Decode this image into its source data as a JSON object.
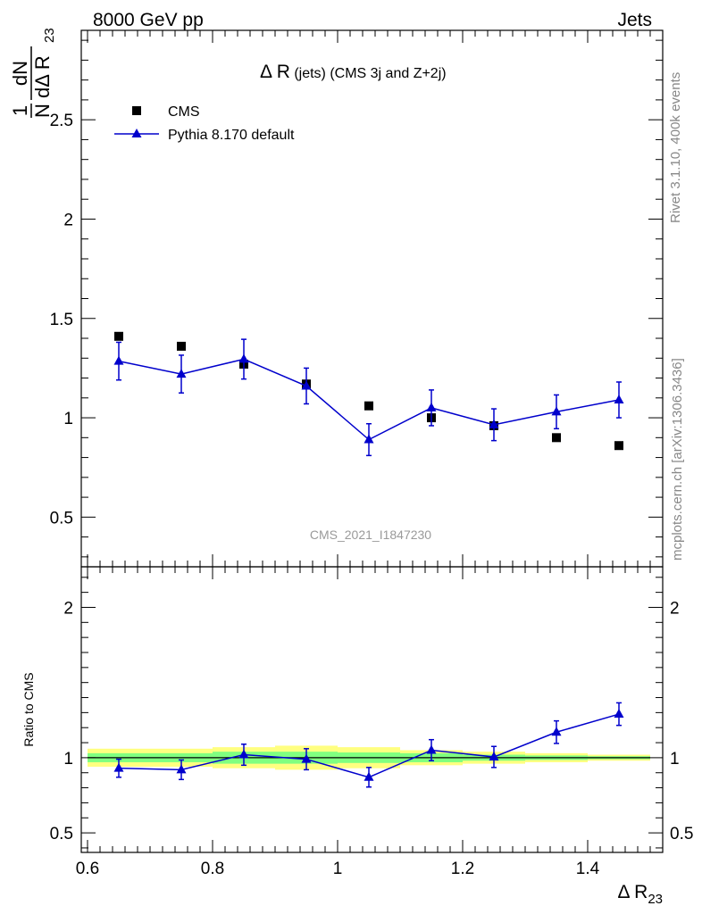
{
  "header": {
    "left": "8000 GeV pp",
    "right": "Jets"
  },
  "plot_title": {
    "symbol": "Δ R",
    "main": " (jets) (CMS 3j and Z+2j)"
  },
  "ylabel_main": {
    "frac_top": "1",
    "frac_bottom": "N",
    "d_top": "dN",
    "d_bottom": "dΔ R",
    "sub": "23"
  },
  "xlabel": {
    "main": "Δ R",
    "sub": "23"
  },
  "ylabel_ratio": "Ratio to CMS",
  "side_labels": {
    "rivet": "Rivet 3.1.10,  400k events",
    "mcplots": "mcplots.cern.ch [arXiv:1306.3436]"
  },
  "watermark": "CMS_2021_I1847230",
  "legend": {
    "data_label": "CMS",
    "mc_label": "Pythia 8.170 default"
  },
  "colors": {
    "data": "#000000",
    "mc": "#0000cc",
    "band_outer": "#ffff80",
    "band_inner": "#80ff80"
  },
  "chart_data": {
    "type": "scatter",
    "x_range": [
      0.59,
      1.52
    ],
    "main_panel": {
      "ylim": [
        0.25,
        2.95
      ],
      "yticks": [
        0.5,
        1,
        1.5,
        2,
        2.5
      ],
      "ytick_labels": [
        "0.5",
        "1",
        "1.5",
        "2",
        "2.5"
      ]
    },
    "ratio_panel": {
      "ylim": [
        0.37,
        2.27
      ],
      "yticks": [
        0.5,
        1,
        2
      ],
      "ytick_labels": [
        "0.5",
        "1",
        "2"
      ]
    },
    "xticks": [
      0.6,
      0.8,
      1,
      1.2,
      1.4
    ],
    "xtick_labels": [
      "0.6",
      "0.8",
      "1",
      "1.2",
      "1.4"
    ],
    "bins": [
      {
        "lo": 0.6,
        "hi": 0.7
      },
      {
        "lo": 0.7,
        "hi": 0.8
      },
      {
        "lo": 0.8,
        "hi": 0.9
      },
      {
        "lo": 0.9,
        "hi": 1.0
      },
      {
        "lo": 1.0,
        "hi": 1.1
      },
      {
        "lo": 1.1,
        "hi": 1.2
      },
      {
        "lo": 1.2,
        "hi": 1.3
      },
      {
        "lo": 1.3,
        "hi": 1.4
      },
      {
        "lo": 1.4,
        "hi": 1.5
      }
    ],
    "series": [
      {
        "name": "CMS",
        "x": [
          0.65,
          0.75,
          0.85,
          0.95,
          1.05,
          1.15,
          1.25,
          1.35,
          1.45
        ],
        "y": [
          1.41,
          1.36,
          1.27,
          1.17,
          1.06,
          1.0,
          0.96,
          0.9,
          0.86
        ]
      },
      {
        "name": "Pythia 8.170 default",
        "x": [
          0.65,
          0.75,
          0.85,
          0.95,
          1.05,
          1.15,
          1.25,
          1.35,
          1.45
        ],
        "y": [
          1.285,
          1.22,
          1.295,
          1.16,
          0.89,
          1.05,
          0.965,
          1.03,
          1.09
        ],
        "yerr": [
          0.095,
          0.095,
          0.1,
          0.09,
          0.08,
          0.09,
          0.08,
          0.085,
          0.09
        ]
      }
    ],
    "ratio": {
      "y": [
        0.93,
        0.92,
        1.02,
        0.99,
        0.87,
        1.05,
        1.005,
        1.17,
        1.29
      ],
      "yerr": [
        0.06,
        0.065,
        0.07,
        0.07,
        0.065,
        0.07,
        0.07,
        0.075,
        0.075
      ],
      "band_inner": [
        0.03,
        0.03,
        0.04,
        0.04,
        0.035,
        0.03,
        0.02,
        0.015,
        0.01
      ],
      "band_outer": [
        0.06,
        0.06,
        0.07,
        0.08,
        0.07,
        0.05,
        0.04,
        0.03,
        0.02
      ]
    }
  }
}
